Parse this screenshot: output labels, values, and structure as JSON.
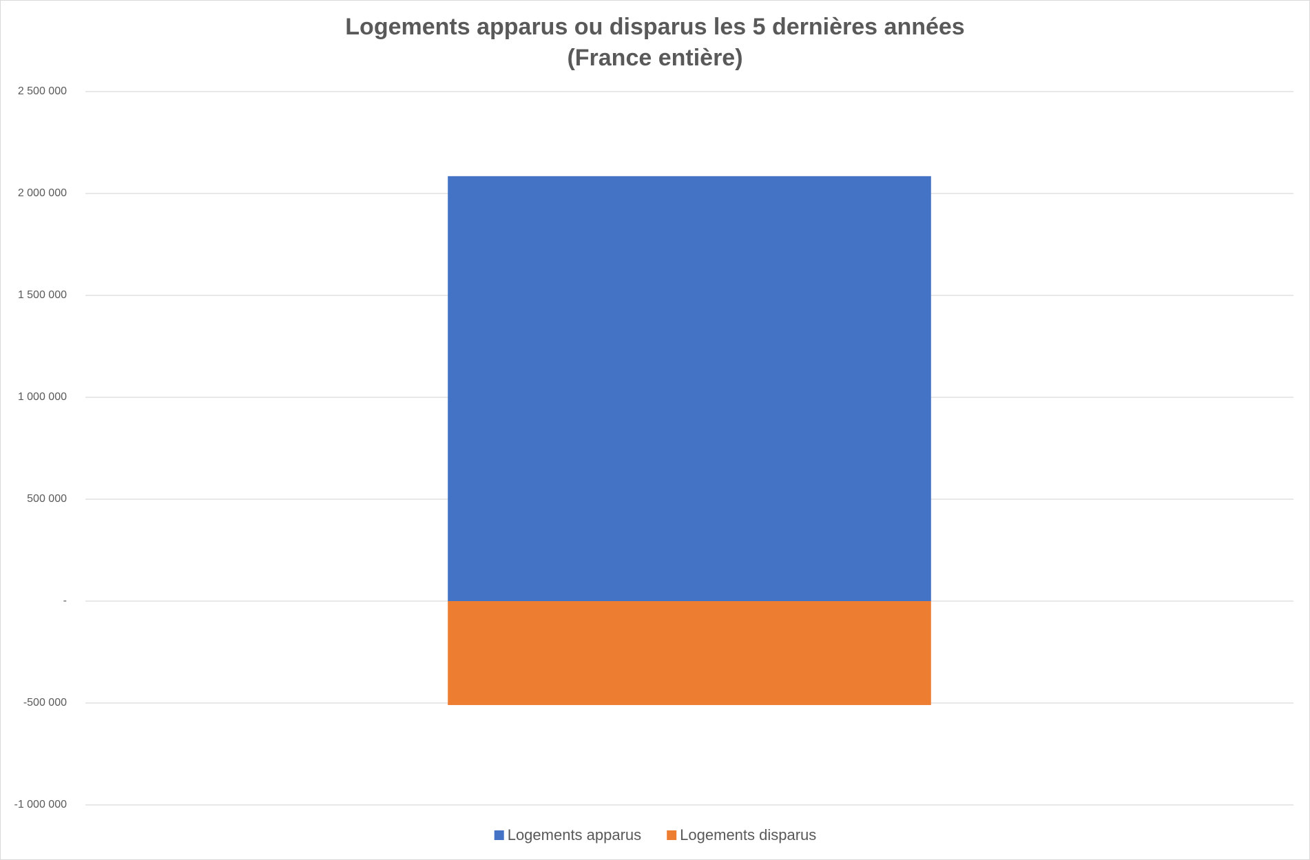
{
  "chart_data": {
    "type": "stacked-bar",
    "title": "Logements apparus ou disparus les 5 dernières années",
    "subtitle": "(France entière)",
    "categories": [
      null
    ],
    "series": [
      {
        "name": "Logements apparus",
        "color": "#4472c4",
        "values": [
          2085000
        ]
      },
      {
        "name": "Logements disparus",
        "color": "#ed7d31",
        "values": [
          -510000
        ]
      }
    ],
    "ylim": [
      -1000000,
      2500000
    ],
    "yticks": [
      {
        "value": -1000000,
        "label": "-1 000 000"
      },
      {
        "value": -500000,
        "label": "-500 000"
      },
      {
        "value": 0,
        "label": "-"
      },
      {
        "value": 500000,
        "label": "500 000"
      },
      {
        "value": 1000000,
        "label": "1 000 000"
      },
      {
        "value": 1500000,
        "label": "1 500 000"
      },
      {
        "value": 2000000,
        "label": "2 000 000"
      },
      {
        "value": 2500000,
        "label": "2 500 000"
      }
    ],
    "grid": true,
    "legend": "bottom"
  }
}
